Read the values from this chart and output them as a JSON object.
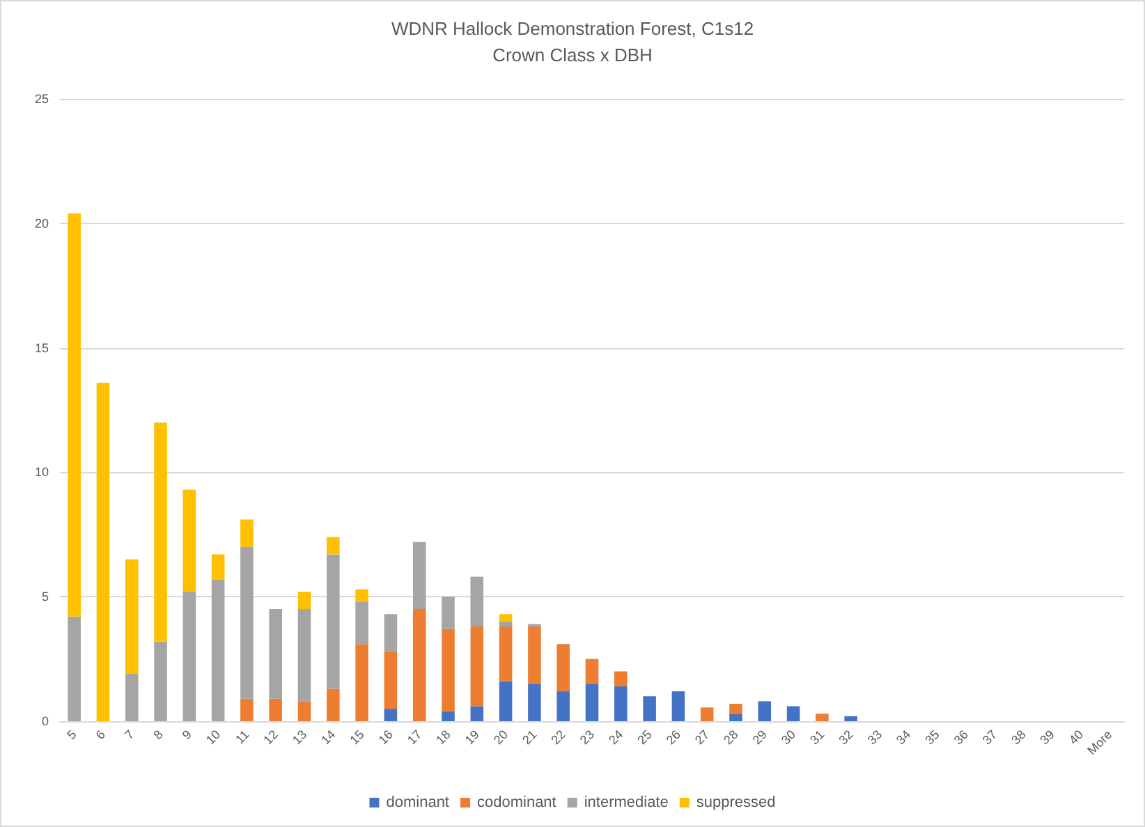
{
  "chart_data": {
    "type": "bar",
    "title": "WDNR Hallock Demonstration Forest, C1s12",
    "subtitle": "Crown Class x DBH",
    "categories": [
      "5",
      "6",
      "7",
      "8",
      "9",
      "10",
      "11",
      "12",
      "13",
      "14",
      "15",
      "16",
      "17",
      "18",
      "19",
      "20",
      "21",
      "22",
      "23",
      "24",
      "25",
      "26",
      "27",
      "28",
      "29",
      "30",
      "31",
      "32",
      "33",
      "34",
      "35",
      "36",
      "37",
      "38",
      "39",
      "40",
      "More"
    ],
    "stacked": true,
    "ylim": [
      0,
      25
    ],
    "yticks": [
      0,
      5,
      10,
      15,
      20,
      25
    ],
    "grid": "y",
    "legend": "bottom",
    "series": [
      {
        "name": "dominant",
        "color": "#4472c4",
        "values": [
          0,
          0,
          0,
          0,
          0,
          0,
          0,
          0,
          0,
          0,
          0,
          0.5,
          0,
          0.4,
          0.6,
          1.6,
          1.5,
          1.2,
          1.5,
          1.4,
          1.0,
          1.2,
          0,
          0.3,
          0.8,
          0.6,
          0,
          0.2,
          0,
          0,
          0,
          0,
          0,
          0,
          0,
          0,
          0
        ]
      },
      {
        "name": "codominant",
        "color": "#ed7d31",
        "values": [
          0,
          0,
          0,
          0,
          0,
          0,
          0.9,
          0.9,
          0.8,
          1.3,
          3.1,
          2.3,
          4.5,
          3.3,
          3.2,
          2.2,
          2.3,
          1.9,
          1.0,
          0.6,
          0,
          0,
          0.55,
          0.4,
          0,
          0,
          0.3,
          0,
          0,
          0,
          0,
          0,
          0,
          0,
          0,
          0,
          0
        ]
      },
      {
        "name": "intermediate",
        "color": "#a5a5a5",
        "values": [
          4.2,
          0,
          1.9,
          3.2,
          5.2,
          5.7,
          6.1,
          3.6,
          3.7,
          5.4,
          1.7,
          1.5,
          2.7,
          1.3,
          2.0,
          0.2,
          0.1,
          0,
          0,
          0,
          0,
          0,
          0,
          0,
          0,
          0,
          0,
          0,
          0,
          0,
          0,
          0,
          0,
          0,
          0,
          0,
          0
        ]
      },
      {
        "name": "suppressed",
        "color": "#ffc000",
        "values": [
          16.2,
          13.6,
          4.6,
          8.8,
          4.1,
          1.0,
          1.1,
          0,
          0.7,
          0.7,
          0.5,
          0,
          0,
          0,
          0,
          0.3,
          0,
          0,
          0,
          0,
          0,
          0,
          0,
          0,
          0,
          0,
          0,
          0,
          0,
          0,
          0,
          0,
          0,
          0,
          0,
          0,
          0
        ]
      }
    ]
  }
}
